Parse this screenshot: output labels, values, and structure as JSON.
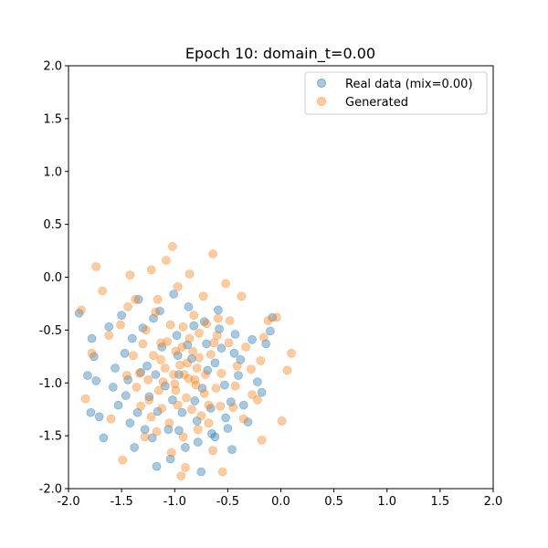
{
  "chart_data": {
    "type": "scatter",
    "title": "Epoch 10: domain_t=0.00",
    "xlabel": "",
    "ylabel": "",
    "xlim": [
      -2.0,
      2.0
    ],
    "ylim": [
      -2.0,
      2.0
    ],
    "x_ticks": [
      "-2.0",
      "-1.5",
      "-1.0",
      "-0.5",
      "0.0",
      "0.5",
      "1.0",
      "1.5",
      "2.0"
    ],
    "y_ticks": [
      "-2.0",
      "-1.5",
      "-1.0",
      "-0.5",
      "0.0",
      "0.5",
      "1.0",
      "1.5",
      "2.0"
    ],
    "grid": false,
    "legend_position": "top-right",
    "series": [
      {
        "name": "Real data (mix=0.00)",
        "color": "#1f77b4",
        "alpha": 0.4,
        "points": [
          [
            -1.9,
            -0.34
          ],
          [
            -1.78,
            -0.58
          ],
          [
            -1.76,
            -0.75
          ],
          [
            -1.82,
            -0.93
          ],
          [
            -1.74,
            -0.98
          ],
          [
            -1.79,
            -1.28
          ],
          [
            -1.71,
            -1.32
          ],
          [
            -1.67,
            -1.52
          ],
          [
            -1.62,
            -0.47
          ],
          [
            -1.58,
            -1.04
          ],
          [
            -1.53,
            -1.21
          ],
          [
            -1.5,
            -0.36
          ],
          [
            -1.47,
            -0.72
          ],
          [
            -1.44,
            -0.97
          ],
          [
            -1.42,
            -1.38
          ],
          [
            -1.38,
            -1.61
          ],
          [
            -1.34,
            -0.21
          ],
          [
            -1.3,
            -0.48
          ],
          [
            -1.26,
            -0.84
          ],
          [
            -1.24,
            -1.13
          ],
          [
            -1.21,
            -1.52
          ],
          [
            -1.17,
            -1.79
          ],
          [
            -1.14,
            -0.32
          ],
          [
            -1.12,
            -0.66
          ],
          [
            -1.09,
            -1.03
          ],
          [
            -1.06,
            -1.44
          ],
          [
            -1.04,
            -1.72
          ],
          [
            -1.01,
            -0.16
          ],
          [
            -0.98,
            -0.55
          ],
          [
            -0.96,
            -0.92
          ],
          [
            -0.93,
            -1.28
          ],
          [
            -0.9,
            -1.61
          ],
          [
            -0.87,
            -0.28
          ],
          [
            -0.84,
            -0.77
          ],
          [
            -0.81,
            -1.17
          ],
          [
            -0.78,
            -1.56
          ],
          [
            -0.75,
            -1.84
          ],
          [
            -0.72,
            -0.42
          ],
          [
            -0.69,
            -0.88
          ],
          [
            -0.66,
            -1.24
          ],
          [
            -0.62,
            -1.51
          ],
          [
            -0.59,
            -0.31
          ],
          [
            -0.56,
            -0.67
          ],
          [
            -0.53,
            -1.02
          ],
          [
            -0.5,
            -1.43
          ],
          [
            -0.46,
            -1.63
          ],
          [
            -0.43,
            -0.54
          ],
          [
            -0.4,
            -0.93
          ],
          [
            -0.35,
            -1.21
          ],
          [
            -0.31,
            -1.37
          ],
          [
            -0.27,
            -0.59
          ],
          [
            -0.22,
            -0.99
          ],
          [
            -0.18,
            -1.09
          ],
          [
            -0.14,
            -0.63
          ],
          [
            -0.1,
            -0.51
          ],
          [
            -0.08,
            -0.38
          ],
          [
            -1.35,
            -1.28
          ],
          [
            -1.28,
            -1.44
          ],
          [
            -1.18,
            -0.92
          ],
          [
            -1.02,
            -1.16
          ],
          [
            -0.88,
            -0.64
          ],
          [
            -0.74,
            -1.05
          ],
          [
            -0.62,
            -0.81
          ],
          [
            -0.52,
            -1.33
          ],
          [
            -1.46,
            -1.12
          ],
          [
            -1.32,
            -0.9
          ],
          [
            -1.16,
            -1.27
          ],
          [
            -0.96,
            -1.45
          ],
          [
            -0.79,
            -1.36
          ],
          [
            -0.65,
            -1.48
          ],
          [
            -0.47,
            -1.18
          ],
          [
            -0.38,
            -0.78
          ],
          [
            -1.56,
            -0.86
          ],
          [
            -1.4,
            -0.58
          ],
          [
            -1.2,
            -0.39
          ],
          [
            -0.97,
            -0.74
          ],
          [
            -0.82,
            -0.46
          ],
          [
            -0.7,
            -0.63
          ],
          [
            -0.58,
            -0.49
          ],
          [
            -0.44,
            -0.72
          ]
        ]
      },
      {
        "name": "Generated",
        "color": "#ff7f0e",
        "alpha": 0.4,
        "points": [
          [
            -1.88,
            -0.31
          ],
          [
            -1.74,
            0.1
          ],
          [
            -1.68,
            -0.13
          ],
          [
            -1.78,
            -0.72
          ],
          [
            -1.84,
            -1.15
          ],
          [
            -1.62,
            -0.55
          ],
          [
            -1.6,
            -1.34
          ],
          [
            -1.49,
            -1.73
          ],
          [
            -1.42,
            0.02
          ],
          [
            -1.37,
            -0.21
          ],
          [
            -1.33,
            -0.91
          ],
          [
            -1.28,
            -1.51
          ],
          [
            -1.22,
            0.07
          ],
          [
            -1.18,
            -0.33
          ],
          [
            -1.13,
            -0.62
          ],
          [
            -1.08,
            0.16
          ],
          [
            -1.02,
            0.29
          ],
          [
            -0.97,
            -0.09
          ],
          [
            -0.92,
            -0.47
          ],
          [
            -0.86,
            0.03
          ],
          [
            -0.82,
            -0.36
          ],
          [
            -0.77,
            -0.76
          ],
          [
            -0.73,
            -0.18
          ],
          [
            -0.68,
            -1.21
          ],
          [
            -0.64,
            0.22
          ],
          [
            -0.6,
            -0.55
          ],
          [
            -0.55,
            -1.84
          ],
          [
            -0.52,
            -0.06
          ],
          [
            -0.48,
            -0.41
          ],
          [
            -0.43,
            -1.03
          ],
          [
            -0.37,
            -0.18
          ],
          [
            -0.33,
            -0.66
          ],
          [
            -0.28,
            -0.87
          ],
          [
            -0.22,
            -1.16
          ],
          [
            -0.18,
            -1.54
          ],
          [
            -0.12,
            -0.41
          ],
          [
            -0.04,
            -0.38
          ],
          [
            0.1,
            -0.72
          ],
          [
            0.06,
            -0.88
          ],
          [
            0.01,
            -1.36
          ],
          [
            -0.94,
            -1.88
          ],
          [
            -0.9,
            -1.8
          ],
          [
            -1.03,
            -1.66
          ],
          [
            -1.17,
            -1.46
          ],
          [
            -1.32,
            -1.22
          ],
          [
            -1.45,
            -0.93
          ],
          [
            -1.51,
            -0.45
          ],
          [
            -1.39,
            -0.74
          ],
          [
            -1.25,
            -0.97
          ],
          [
            -1.12,
            -1.24
          ],
          [
            -0.99,
            -1.07
          ],
          [
            -0.87,
            -0.96
          ],
          [
            -0.75,
            -1.31
          ],
          [
            -0.64,
            -1.64
          ],
          [
            -0.56,
            -0.91
          ],
          [
            -0.45,
            -1.23
          ],
          [
            -0.35,
            -1.34
          ],
          [
            -0.27,
            -1.11
          ],
          [
            -0.19,
            -0.79
          ],
          [
            -0.16,
            -0.57
          ],
          [
            -1.2,
            -0.74
          ],
          [
            -1.07,
            -0.61
          ],
          [
            -0.95,
            -0.83
          ],
          [
            -0.83,
            -0.7
          ],
          [
            -0.71,
            -0.92
          ],
          [
            -0.61,
            -1.05
          ],
          [
            -1.15,
            -1.07
          ],
          [
            -1.01,
            -0.92
          ],
          [
            -0.89,
            -1.14
          ],
          [
            -0.77,
            -0.53
          ],
          [
            -0.66,
            -0.73
          ],
          [
            -1.27,
            -0.5
          ],
          [
            -1.09,
            -0.86
          ],
          [
            -0.93,
            -0.66
          ],
          [
            -0.8,
            -1.02
          ],
          [
            -0.68,
            -1.38
          ],
          [
            -0.57,
            -1.22
          ],
          [
            -1.36,
            -1.04
          ],
          [
            -1.22,
            -1.32
          ],
          [
            -1.05,
            -1.38
          ],
          [
            -0.92,
            -1.51
          ],
          [
            -0.78,
            -1.44
          ],
          [
            -0.59,
            -0.39
          ],
          [
            -0.49,
            -0.62
          ],
          [
            -0.41,
            -0.84
          ],
          [
            -1.44,
            -0.28
          ],
          [
            -1.3,
            -0.63
          ],
          [
            -1.16,
            -0.21
          ],
          [
            -1.04,
            -0.45
          ],
          [
            -0.99,
            -0.7
          ],
          [
            -0.88,
            -0.81
          ],
          [
            -0.84,
            -1.25
          ],
          [
            -0.72,
            -1.1
          ],
          [
            -0.63,
            -0.62
          ],
          [
            -1.11,
            -0.99
          ],
          [
            -0.97,
            -1.21
          ],
          [
            -0.86,
            -0.58
          ],
          [
            -0.79,
            -0.86
          ],
          [
            -0.7,
            -0.44
          ],
          [
            -1.24,
            -1.16
          ],
          [
            -1.13,
            -0.78
          ],
          [
            -1.0,
            -1.01
          ],
          [
            -0.91,
            -0.92
          ],
          [
            -0.81,
            -0.97
          ]
        ]
      }
    ]
  }
}
